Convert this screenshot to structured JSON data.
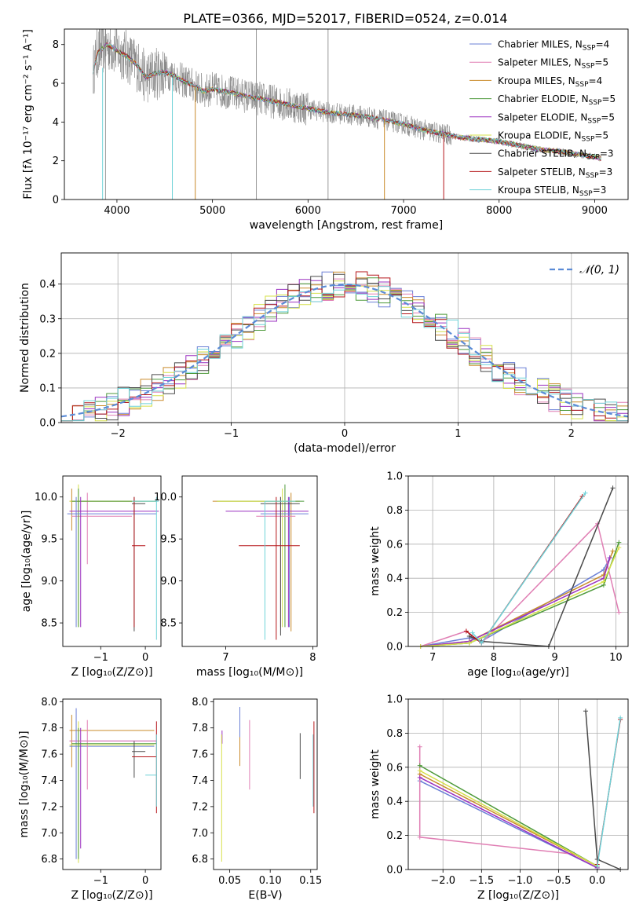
{
  "figure": {
    "title": "PLATE=0366, MJD=52017, FIBERID=0524, z=0.014",
    "colors": {
      "data_grey": "#808080",
      "norm_dash": "#5b8bd6",
      "grid": "#b0b0b0",
      "models": [
        "#6a7fd6",
        "#e07fb4",
        "#c98b2b",
        "#4e9a3b",
        "#9b30c0",
        "#d6e04a",
        "#4a4a4a",
        "#b5161a",
        "#6fd2d8"
      ]
    }
  },
  "chart_data": [
    {
      "id": "spectrum",
      "type": "line",
      "title": "PLATE=0366, MJD=52017, FIBERID=0524, z=0.014",
      "xlabel": "wavelength [Angstrom, rest frame]",
      "ylabel": "Flux [fλ 10⁻¹⁷ erg cm⁻² s⁻¹ A⁻¹]",
      "xlim": [
        3450,
        9350
      ],
      "ylim": [
        0,
        8.8
      ],
      "xticks": [
        4000,
        5000,
        6000,
        7000,
        8000,
        9000
      ],
      "yticks": [
        0,
        2,
        4,
        6,
        8
      ],
      "grid": false,
      "legend_position": "top-right",
      "continuum": {
        "x": [
          3750,
          3800,
          3900,
          4000,
          4100,
          4200,
          4300,
          4400,
          4500,
          4600,
          4700,
          4800,
          4900,
          5000,
          5200,
          5400,
          5600,
          5800,
          6000,
          6200,
          6400,
          6600,
          6800,
          7000,
          7200,
          7400,
          7600,
          7800,
          8000,
          8200,
          8400,
          8600,
          8800,
          9000,
          9070
        ],
        "y": [
          6.6,
          7.6,
          8.0,
          7.7,
          7.4,
          7.0,
          6.3,
          6.5,
          6.6,
          6.4,
          6.1,
          5.9,
          5.6,
          5.7,
          5.5,
          5.3,
          5.1,
          4.9,
          4.7,
          4.5,
          4.4,
          4.3,
          4.1,
          3.9,
          3.6,
          3.4,
          3.2,
          3.1,
          3.0,
          2.8,
          2.6,
          2.5,
          2.35,
          2.2,
          2.1
        ]
      },
      "series": [
        {
          "name": "Chabrier MILES, N",
          "sub": "SSP",
          "suffix": "=4",
          "color": "#6a7fd6"
        },
        {
          "name": "Salpeter MILES, N",
          "sub": "SSP",
          "suffix": "=5",
          "color": "#e07fb4"
        },
        {
          "name": "Kroupa MILES, N",
          "sub": "SSP",
          "suffix": "=4",
          "color": "#c98b2b"
        },
        {
          "name": "Chabrier ELODIE, N",
          "sub": "SSP",
          "suffix": "=5",
          "color": "#4e9a3b"
        },
        {
          "name": "Salpeter ELODIE, N",
          "sub": "SSP",
          "suffix": "=5",
          "color": "#9b30c0"
        },
        {
          "name": "Kroupa ELODIE, N",
          "sub": "SSP",
          "suffix": "=5",
          "color": "#d6e04a"
        },
        {
          "name": "Chabrier STELIB, N",
          "sub": "SSP",
          "suffix": "=3",
          "color": "#4a4a4a"
        },
        {
          "name": "Salpeter STELIB, N",
          "sub": "SSP",
          "suffix": "=3",
          "color": "#b5161a"
        },
        {
          "name": "Kroupa STELIB, N",
          "sub": "SSP",
          "suffix": "=3",
          "color": "#6fd2d8"
        }
      ]
    },
    {
      "id": "residuals",
      "type": "line",
      "xlabel": "(data-model)/error",
      "ylabel": "Normed distribution",
      "xlim": [
        -2.5,
        2.5
      ],
      "ylim": [
        0,
        0.49
      ],
      "xticks": [
        -2,
        -1,
        0,
        1,
        2
      ],
      "yticks": [
        0.0,
        0.1,
        0.2,
        0.3,
        0.4
      ],
      "grid": true,
      "legend_position": "top-right",
      "legend_label": "𝒩(0, 1)",
      "bin_edges": [
        -2.5,
        -2.4,
        -2.3,
        -2.2,
        -2.1,
        -2.0,
        -1.9,
        -1.8,
        -1.7,
        -1.6,
        -1.5,
        -1.4,
        -1.3,
        -1.2,
        -1.1,
        -1.0,
        -0.9,
        -0.8,
        -0.7,
        -0.6,
        -0.5,
        -0.4,
        -0.3,
        -0.2,
        -0.1,
        0.0,
        0.1,
        0.2,
        0.3,
        0.4,
        0.5,
        0.6,
        0.7,
        0.8,
        0.9,
        1.0,
        1.1,
        1.2,
        1.3,
        1.4,
        1.5,
        1.6,
        1.7,
        1.8,
        1.9,
        2.0,
        2.1,
        2.2,
        2.3,
        2.4,
        2.5
      ]
    },
    {
      "id": "age_vs_Z",
      "type": "scatter",
      "xlabel": "Z [log₁₀(Z/Z⊙)]",
      "ylabel": "age  [log₁₀(age/yr)]",
      "xlim": [
        -1.85,
        0.35
      ],
      "ylim": [
        8.22,
        10.25
      ],
      "xticks": [
        -1,
        0
      ],
      "yticks": [
        8.5,
        9.0,
        9.5,
        10.0
      ],
      "grid": false
    },
    {
      "id": "age_vs_mass",
      "type": "scatter",
      "xlabel": "mass [log₁₀(M/M⊙)]",
      "ylabel": "",
      "xlim": [
        6.5,
        8.05
      ],
      "ylim": [
        8.22,
        10.25
      ],
      "xticks": [
        7,
        8
      ],
      "yticks": [
        8.5,
        9.0,
        9.5,
        10.0
      ],
      "grid": false
    },
    {
      "id": "weight_vs_age",
      "type": "line",
      "xlabel": "age  [log₁₀(age/yr)]",
      "ylabel": "mass weight",
      "xlim": [
        6.6,
        10.2
      ],
      "ylim": [
        0,
        1.0
      ],
      "xticks": [
        7,
        8,
        9,
        10
      ],
      "yticks": [
        0.0,
        0.2,
        0.4,
        0.6,
        0.8,
        1.0
      ],
      "grid": true,
      "series": [
        {
          "name": "Chabrier MILES",
          "x": [
            6.8,
            7.6,
            7.8,
            9.8,
            9.9
          ],
          "y": [
            0.0,
            0.05,
            0.03,
            0.45,
            0.52
          ]
        },
        {
          "name": "Salpeter MILES",
          "x": [
            6.8,
            7.55,
            7.8,
            9.7,
            10.05
          ],
          "y": [
            0.0,
            0.09,
            0.02,
            0.72,
            0.2
          ]
        },
        {
          "name": "Kroupa MILES",
          "x": [
            6.8,
            7.6,
            9.8,
            9.95
          ],
          "y": [
            0.0,
            0.03,
            0.42,
            0.56
          ]
        },
        {
          "name": "Chabrier ELODIE",
          "x": [
            6.8,
            7.6,
            9.8,
            10.05
          ],
          "y": [
            0.0,
            0.02,
            0.36,
            0.61
          ]
        },
        {
          "name": "Salpeter ELODIE",
          "x": [
            6.8,
            7.6,
            9.8,
            9.9
          ],
          "y": [
            0.0,
            0.03,
            0.4,
            0.52
          ]
        },
        {
          "name": "Kroupa ELODIE",
          "x": [
            6.8,
            7.6,
            9.8,
            10.05
          ],
          "y": [
            0.0,
            0.02,
            0.38,
            0.58
          ]
        },
        {
          "name": "Chabrier STELIB",
          "x": [
            7.6,
            7.8,
            8.9,
            9.95
          ],
          "y": [
            0.06,
            0.03,
            0.0,
            0.93
          ]
        },
        {
          "name": "Salpeter STELIB",
          "x": [
            7.55,
            7.8,
            9.45
          ],
          "y": [
            0.09,
            0.02,
            0.88
          ]
        },
        {
          "name": "Kroupa STELIB",
          "x": [
            7.65,
            7.8,
            9.5
          ],
          "y": [
            0.08,
            0.02,
            0.9
          ]
        }
      ]
    },
    {
      "id": "mass_vs_Z",
      "type": "scatter",
      "xlabel": "Z [log₁₀(Z/Z⊙)]",
      "ylabel": "mass [log₁₀(M/M⊙)]",
      "xlim": [
        -1.85,
        0.35
      ],
      "ylim": [
        6.72,
        8.02
      ],
      "xticks": [
        -1,
        0
      ],
      "yticks": [
        6.8,
        7.0,
        7.2,
        7.4,
        7.6,
        7.8,
        8.0
      ],
      "grid": false
    },
    {
      "id": "mass_vs_EBV",
      "type": "scatter",
      "xlabel": "E(B-V)",
      "ylabel": "",
      "xlim": [
        0.03,
        0.158
      ],
      "ylim": [
        6.72,
        8.02
      ],
      "xticks": [
        0.05,
        0.1,
        0.15
      ],
      "yticks": [
        6.8,
        7.0,
        7.2,
        7.4,
        7.6,
        7.8,
        8.0
      ],
      "grid": false
    },
    {
      "id": "weight_vs_Z",
      "type": "line",
      "xlabel": "Z [log₁₀(Z/Z⊙)]",
      "ylabel": "mass weight",
      "xlim": [
        -2.45,
        0.4
      ],
      "ylim": [
        0,
        1.0
      ],
      "xticks": [
        -2.0,
        -1.5,
        -1.0,
        -0.5,
        0.0
      ],
      "yticks": [
        0.0,
        0.2,
        0.4,
        0.6,
        0.8,
        1.0
      ],
      "grid": true,
      "series": [
        {
          "name": "Chabrier MILES",
          "x": [
            -2.3,
            0.0
          ],
          "y": [
            0.52,
            0.01
          ]
        },
        {
          "name": "Salpeter MILES",
          "x": [
            -2.3,
            -2.3,
            -0.3,
            0.0
          ],
          "y": [
            0.72,
            0.19,
            0.09,
            0.02
          ]
        },
        {
          "name": "Kroupa MILES",
          "x": [
            -2.3,
            0.0
          ],
          "y": [
            0.56,
            0.02
          ]
        },
        {
          "name": "Chabrier ELODIE",
          "x": [
            -2.3,
            0.0
          ],
          "y": [
            0.61,
            0.02
          ]
        },
        {
          "name": "Salpeter ELODIE",
          "x": [
            -2.3,
            0.0
          ],
          "y": [
            0.54,
            0.01
          ]
        },
        {
          "name": "Kroupa ELODIE",
          "x": [
            -2.3,
            0.0
          ],
          "y": [
            0.58,
            0.02
          ]
        },
        {
          "name": "Chabrier STELIB",
          "x": [
            -0.15,
            0.0,
            0.3
          ],
          "y": [
            0.93,
            0.06,
            0.0
          ]
        },
        {
          "name": "Salpeter STELIB",
          "x": [
            0.0,
            0.3
          ],
          "y": [
            0.03,
            0.88
          ]
        },
        {
          "name": "Kroupa STELIB",
          "x": [
            0.0,
            0.3
          ],
          "y": [
            0.02,
            0.89
          ]
        }
      ]
    }
  ]
}
